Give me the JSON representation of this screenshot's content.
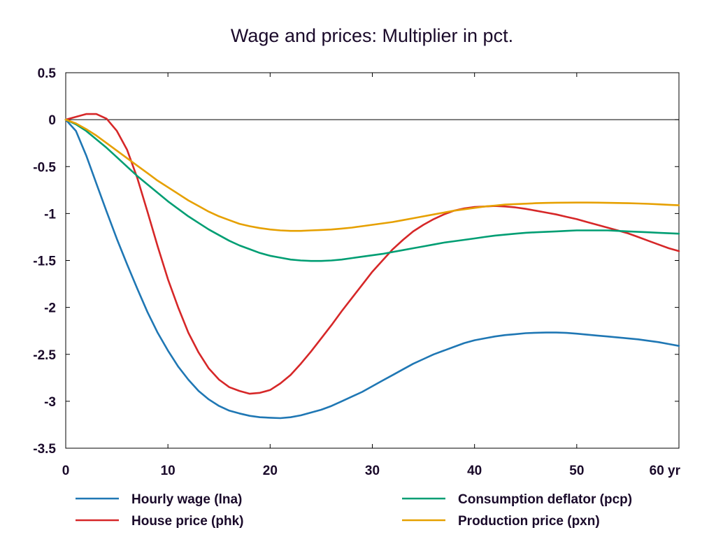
{
  "chart_data": {
    "type": "line",
    "title": "Wage and prices: Multiplier in pct.",
    "xlabel": "",
    "ylabel": "",
    "x_unit_suffix": "yr",
    "xlim": [
      0,
      60
    ],
    "ylim": [
      -3.5,
      0.5
    ],
    "x_ticks": [
      0,
      10,
      20,
      30,
      40,
      50,
      60
    ],
    "x_tick_labels": [
      "0",
      "10",
      "20",
      "30",
      "40",
      "50",
      "60 yr"
    ],
    "y_ticks": [
      0.5,
      0,
      -0.5,
      -1,
      -1.5,
      -2,
      -2.5,
      -3,
      -3.5
    ],
    "y_tick_labels": [
      "0.5",
      "0",
      "-0.5",
      "-1",
      "-1.5",
      "-2",
      "-2.5",
      "-3",
      "-3.5"
    ],
    "grid": false,
    "zero_line": true,
    "legend_position": "bottom",
    "x": [
      0,
      1,
      2,
      3,
      4,
      5,
      6,
      7,
      8,
      9,
      10,
      11,
      12,
      13,
      14,
      15,
      16,
      17,
      18,
      19,
      20,
      21,
      22,
      23,
      24,
      25,
      26,
      27,
      28,
      29,
      30,
      31,
      32,
      33,
      34,
      35,
      36,
      37,
      38,
      39,
      40,
      41,
      42,
      43,
      44,
      45,
      46,
      47,
      48,
      49,
      50,
      51,
      52,
      53,
      54,
      55,
      56,
      57,
      58,
      59,
      60
    ],
    "series": [
      {
        "name": "Hourly wage (lna)",
        "color": "#1f77b4",
        "values": [
          0,
          -0.12,
          -0.38,
          -0.68,
          -0.98,
          -1.27,
          -1.54,
          -1.8,
          -2.05,
          -2.27,
          -2.46,
          -2.63,
          -2.77,
          -2.89,
          -2.98,
          -3.05,
          -3.1,
          -3.13,
          -3.155,
          -3.17,
          -3.175,
          -3.18,
          -3.17,
          -3.15,
          -3.12,
          -3.09,
          -3.05,
          -3.0,
          -2.95,
          -2.9,
          -2.84,
          -2.78,
          -2.72,
          -2.66,
          -2.6,
          -2.55,
          -2.5,
          -2.46,
          -2.42,
          -2.38,
          -2.35,
          -2.33,
          -2.31,
          -2.295,
          -2.285,
          -2.275,
          -2.27,
          -2.268,
          -2.268,
          -2.272,
          -2.28,
          -2.29,
          -2.3,
          -2.31,
          -2.32,
          -2.33,
          -2.34,
          -2.355,
          -2.37,
          -2.39,
          -2.41
        ]
      },
      {
        "name": "House price (phk)",
        "color": "#d62728",
        "values": [
          0,
          0.03,
          0.06,
          0.06,
          0.01,
          -0.12,
          -0.32,
          -0.62,
          -0.98,
          -1.35,
          -1.7,
          -2.0,
          -2.27,
          -2.48,
          -2.65,
          -2.77,
          -2.85,
          -2.89,
          -2.92,
          -2.91,
          -2.88,
          -2.81,
          -2.72,
          -2.6,
          -2.47,
          -2.33,
          -2.19,
          -2.04,
          -1.9,
          -1.76,
          -1.62,
          -1.5,
          -1.38,
          -1.28,
          -1.19,
          -1.12,
          -1.06,
          -1.01,
          -0.97,
          -0.945,
          -0.93,
          -0.925,
          -0.92,
          -0.925,
          -0.935,
          -0.95,
          -0.97,
          -0.99,
          -1.01,
          -1.035,
          -1.06,
          -1.09,
          -1.12,
          -1.15,
          -1.18,
          -1.21,
          -1.25,
          -1.29,
          -1.33,
          -1.37,
          -1.4
        ]
      },
      {
        "name": "Consumption deflator (pcp)",
        "color": "#009e73",
        "values": [
          0,
          -0.05,
          -0.12,
          -0.21,
          -0.3,
          -0.4,
          -0.5,
          -0.6,
          -0.69,
          -0.78,
          -0.87,
          -0.95,
          -1.03,
          -1.1,
          -1.17,
          -1.23,
          -1.29,
          -1.34,
          -1.38,
          -1.42,
          -1.45,
          -1.47,
          -1.49,
          -1.5,
          -1.505,
          -1.505,
          -1.5,
          -1.49,
          -1.475,
          -1.46,
          -1.445,
          -1.43,
          -1.41,
          -1.39,
          -1.37,
          -1.35,
          -1.33,
          -1.31,
          -1.295,
          -1.28,
          -1.265,
          -1.25,
          -1.235,
          -1.225,
          -1.215,
          -1.205,
          -1.2,
          -1.195,
          -1.19,
          -1.185,
          -1.18,
          -1.18,
          -1.18,
          -1.18,
          -1.185,
          -1.19,
          -1.195,
          -1.2,
          -1.205,
          -1.21,
          -1.215
        ]
      },
      {
        "name": "Production price (pxn)",
        "color": "#e6a000",
        "values": [
          0,
          -0.04,
          -0.1,
          -0.17,
          -0.25,
          -0.33,
          -0.41,
          -0.49,
          -0.57,
          -0.65,
          -0.72,
          -0.79,
          -0.86,
          -0.92,
          -0.98,
          -1.03,
          -1.07,
          -1.11,
          -1.135,
          -1.155,
          -1.17,
          -1.18,
          -1.185,
          -1.185,
          -1.18,
          -1.175,
          -1.17,
          -1.16,
          -1.15,
          -1.135,
          -1.12,
          -1.105,
          -1.09,
          -1.07,
          -1.05,
          -1.03,
          -1.01,
          -0.99,
          -0.97,
          -0.955,
          -0.94,
          -0.925,
          -0.915,
          -0.905,
          -0.9,
          -0.895,
          -0.89,
          -0.887,
          -0.885,
          -0.884,
          -0.883,
          -0.883,
          -0.884,
          -0.886,
          -0.888,
          -0.89,
          -0.893,
          -0.897,
          -0.902,
          -0.907,
          -0.912
        ]
      }
    ]
  }
}
